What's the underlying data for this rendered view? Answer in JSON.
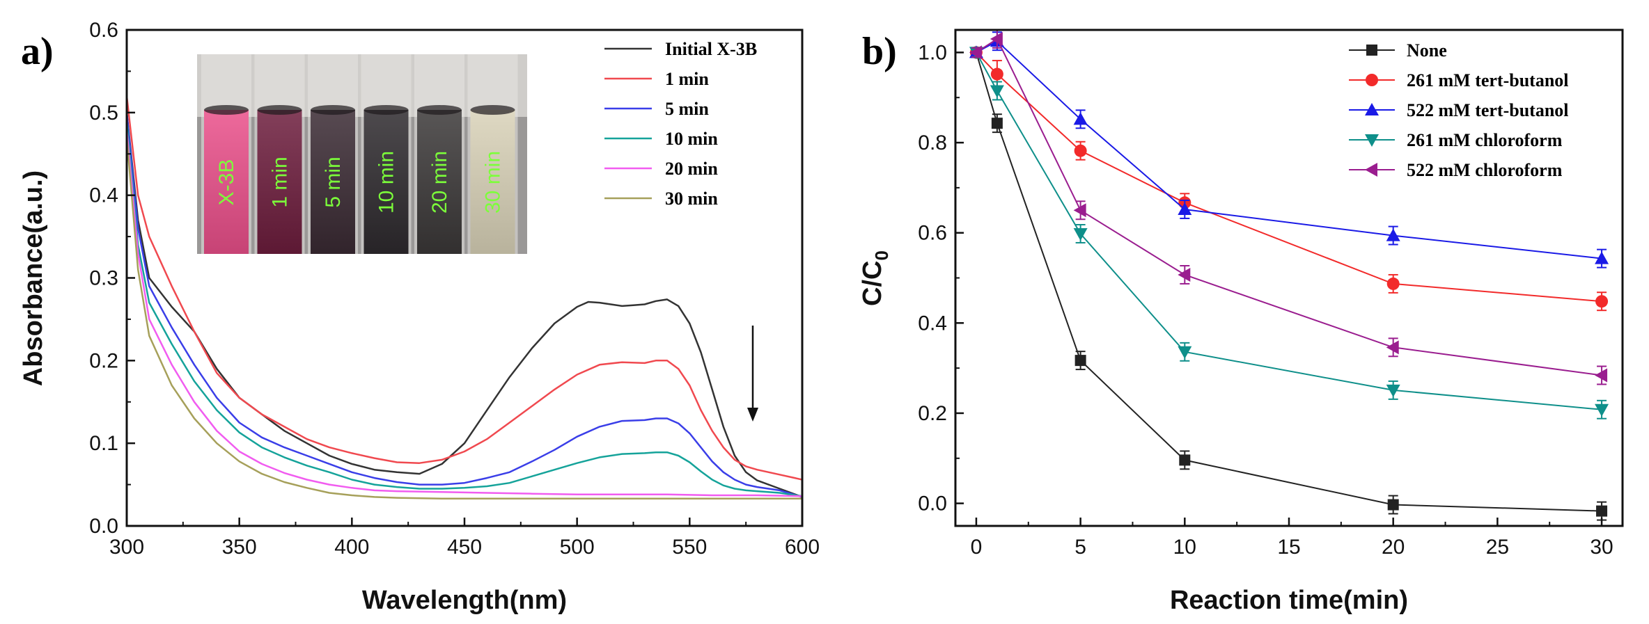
{
  "chart_data": [
    {
      "type": "line",
      "panel_label": "a)",
      "xlabel": "Wavelength(nm)",
      "ylabel": "Absorbance(a.u.)",
      "xlim": [
        300,
        600
      ],
      "ylim": [
        0,
        0.6
      ],
      "xticks": [
        "300",
        "350",
        "400",
        "450",
        "500",
        "550",
        "600"
      ],
      "yticks": [
        "0.0",
        "0.1",
        "0.2",
        "0.3",
        "0.4",
        "0.5",
        "0.6"
      ],
      "legend": "top-right",
      "annotations": [
        "downward arrow near 578 nm indicating decrease of absorbance"
      ],
      "inset": {
        "description": "photo of six cuvettes",
        "labels": [
          "X-3B",
          "1 min",
          "5 min",
          "10 min",
          "20 min",
          "30 min"
        ],
        "colors": [
          "#ea4f8a",
          "#6d1d3d",
          "#3a2a33",
          "#2e2a2e",
          "#3b3838",
          "#d9d2b8"
        ]
      },
      "series": [
        {
          "name": "Initial X-3B",
          "color": "#333333",
          "x": [
            300,
            305,
            310,
            320,
            330,
            340,
            350,
            360,
            370,
            380,
            390,
            400,
            410,
            420,
            430,
            440,
            450,
            460,
            470,
            480,
            490,
            500,
            505,
            510,
            515,
            520,
            525,
            530,
            535,
            540,
            545,
            550,
            555,
            560,
            565,
            570,
            575,
            580,
            590,
            600
          ],
          "y": [
            0.5,
            0.37,
            0.3,
            0.265,
            0.235,
            0.19,
            0.155,
            0.135,
            0.115,
            0.1,
            0.085,
            0.075,
            0.068,
            0.065,
            0.063,
            0.075,
            0.1,
            0.14,
            0.18,
            0.215,
            0.245,
            0.265,
            0.271,
            0.27,
            0.268,
            0.266,
            0.267,
            0.268,
            0.272,
            0.274,
            0.266,
            0.245,
            0.21,
            0.165,
            0.12,
            0.085,
            0.065,
            0.055,
            0.045,
            0.035
          ]
        },
        {
          "name": "1 min",
          "color": "#f0494f",
          "x": [
            300,
            305,
            310,
            320,
            330,
            340,
            350,
            360,
            370,
            380,
            390,
            400,
            410,
            420,
            430,
            440,
            450,
            460,
            470,
            480,
            490,
            500,
            510,
            520,
            530,
            535,
            540,
            545,
            550,
            555,
            560,
            565,
            570,
            575,
            580,
            590,
            600
          ],
          "y": [
            0.52,
            0.4,
            0.35,
            0.29,
            0.235,
            0.185,
            0.155,
            0.135,
            0.12,
            0.105,
            0.095,
            0.088,
            0.082,
            0.077,
            0.076,
            0.08,
            0.09,
            0.105,
            0.125,
            0.145,
            0.165,
            0.183,
            0.195,
            0.198,
            0.197,
            0.2,
            0.2,
            0.19,
            0.17,
            0.14,
            0.115,
            0.095,
            0.08,
            0.072,
            0.068,
            0.062,
            0.056
          ]
        },
        {
          "name": "5 min",
          "color": "#3a3ee8",
          "x": [
            300,
            305,
            310,
            320,
            330,
            340,
            350,
            360,
            370,
            380,
            390,
            400,
            410,
            420,
            430,
            440,
            450,
            460,
            470,
            480,
            490,
            500,
            510,
            520,
            530,
            535,
            540,
            545,
            550,
            555,
            560,
            565,
            570,
            575,
            580,
            590,
            600
          ],
          "y": [
            0.5,
            0.36,
            0.29,
            0.24,
            0.195,
            0.155,
            0.125,
            0.107,
            0.095,
            0.085,
            0.075,
            0.065,
            0.058,
            0.053,
            0.05,
            0.05,
            0.052,
            0.058,
            0.065,
            0.078,
            0.092,
            0.108,
            0.12,
            0.127,
            0.128,
            0.13,
            0.13,
            0.124,
            0.112,
            0.095,
            0.078,
            0.065,
            0.056,
            0.05,
            0.047,
            0.043,
            0.035
          ]
        },
        {
          "name": "10 min",
          "color": "#15a39a",
          "x": [
            300,
            305,
            310,
            320,
            330,
            340,
            350,
            360,
            370,
            380,
            390,
            400,
            410,
            420,
            430,
            440,
            450,
            460,
            470,
            480,
            490,
            500,
            510,
            520,
            530,
            535,
            540,
            545,
            550,
            555,
            560,
            565,
            570,
            575,
            580,
            590,
            600
          ],
          "y": [
            0.49,
            0.34,
            0.27,
            0.22,
            0.175,
            0.14,
            0.113,
            0.095,
            0.083,
            0.073,
            0.065,
            0.056,
            0.05,
            0.047,
            0.045,
            0.045,
            0.046,
            0.048,
            0.052,
            0.06,
            0.068,
            0.076,
            0.083,
            0.087,
            0.088,
            0.089,
            0.089,
            0.085,
            0.077,
            0.066,
            0.056,
            0.049,
            0.045,
            0.043,
            0.042,
            0.04,
            0.036
          ]
        },
        {
          "name": "20 min",
          "color": "#f15cf0",
          "x": [
            300,
            305,
            310,
            320,
            330,
            340,
            350,
            360,
            370,
            380,
            390,
            400,
            410,
            420,
            440,
            460,
            480,
            500,
            520,
            540,
            560,
            580,
            600
          ],
          "y": [
            0.48,
            0.33,
            0.25,
            0.195,
            0.15,
            0.115,
            0.09,
            0.075,
            0.064,
            0.056,
            0.05,
            0.046,
            0.043,
            0.042,
            0.041,
            0.04,
            0.039,
            0.038,
            0.038,
            0.038,
            0.037,
            0.037,
            0.036
          ]
        },
        {
          "name": "30 min",
          "color": "#a6a05a",
          "x": [
            300,
            305,
            310,
            320,
            330,
            340,
            350,
            360,
            370,
            380,
            390,
            400,
            410,
            420,
            440,
            460,
            480,
            500,
            520,
            540,
            560,
            580,
            600
          ],
          "y": [
            0.47,
            0.31,
            0.23,
            0.17,
            0.13,
            0.1,
            0.078,
            0.063,
            0.053,
            0.046,
            0.04,
            0.037,
            0.035,
            0.034,
            0.033,
            0.033,
            0.033,
            0.033,
            0.033,
            0.033,
            0.033,
            0.033,
            0.033
          ]
        }
      ]
    },
    {
      "type": "line",
      "panel_label": "b)",
      "xlabel": "Reaction time(min)",
      "ylabel": "C/C",
      "ylabel_subscript": "0",
      "xlim": [
        -1,
        31
      ],
      "ylim": [
        -0.05,
        1.05
      ],
      "xticks": [
        "0",
        "5",
        "10",
        "15",
        "20",
        "25",
        "30"
      ],
      "yticks": [
        "0.0",
        "0.2",
        "0.4",
        "0.6",
        "0.8",
        "1.0"
      ],
      "legend": "top-right",
      "x": [
        0,
        1,
        5,
        10,
        20,
        30
      ],
      "series": [
        {
          "name": "None",
          "color": "#222222",
          "marker": "square",
          "values": [
            1.0,
            0.843,
            0.317,
            0.096,
            -0.003,
            -0.017
          ],
          "errors": [
            0.01,
            0.02,
            0.02,
            0.02,
            0.02,
            0.02
          ]
        },
        {
          "name": "261 mM tert-butanol",
          "color": "#f22a2a",
          "marker": "circle",
          "values": [
            1.0,
            0.952,
            0.782,
            0.667,
            0.487,
            0.448
          ],
          "errors": [
            0.01,
            0.03,
            0.02,
            0.02,
            0.02,
            0.02
          ]
        },
        {
          "name": "522 mM tert-butanol",
          "color": "#1a1ae6",
          "marker": "triangle-up",
          "values": [
            1.0,
            1.025,
            0.852,
            0.652,
            0.594,
            0.543
          ],
          "errors": [
            0.01,
            0.02,
            0.02,
            0.02,
            0.02,
            0.02
          ]
        },
        {
          "name": "261 mM chloroform",
          "color": "#0e8f8a",
          "marker": "triangle-down",
          "values": [
            1.0,
            0.915,
            0.598,
            0.336,
            0.251,
            0.208
          ],
          "errors": [
            0.01,
            0.02,
            0.02,
            0.02,
            0.02,
            0.02
          ]
        },
        {
          "name": "522 mM chloroform",
          "color": "#9a1d8f",
          "marker": "triangle-left",
          "values": [
            1.0,
            1.03,
            0.65,
            0.507,
            0.346,
            0.284
          ],
          "errors": [
            0.01,
            0.02,
            0.02,
            0.02,
            0.02,
            0.02
          ]
        }
      ]
    }
  ]
}
